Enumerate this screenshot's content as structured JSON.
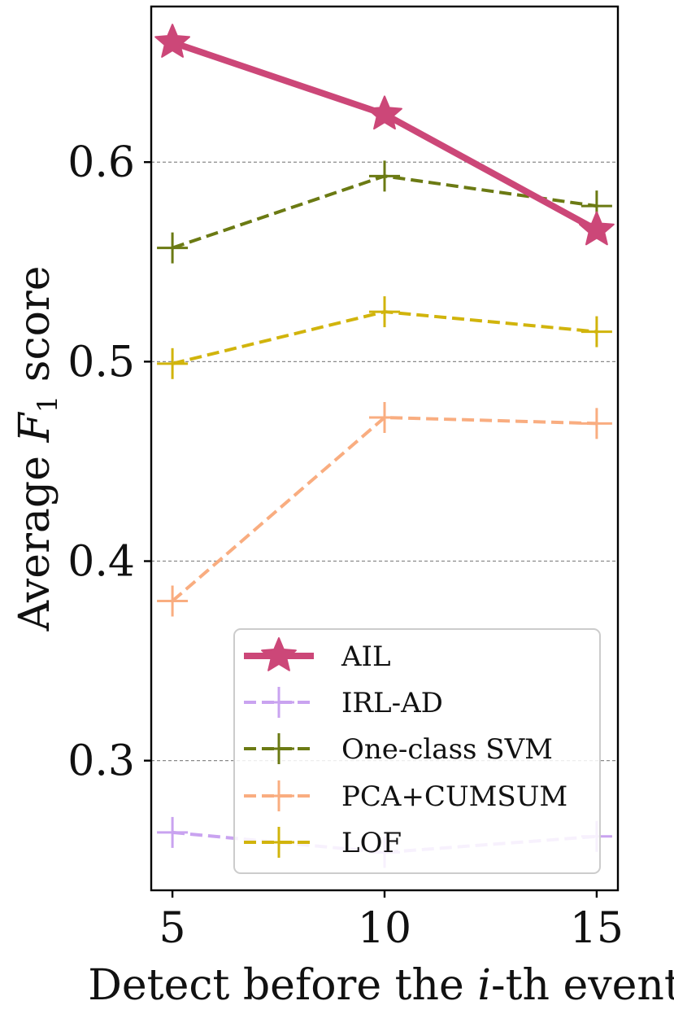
{
  "chart_data": {
    "type": "line",
    "x": [
      5,
      10,
      15
    ],
    "xlim": [
      4.5,
      15.5
    ],
    "ylim": [
      0.235,
      0.678
    ],
    "xticks": [
      5,
      10,
      15
    ],
    "xtick_labels": [
      "5",
      "10",
      "15"
    ],
    "yticks": [
      0.3,
      0.4,
      0.5,
      0.6
    ],
    "ytick_labels": [
      "0.3",
      "0.4",
      "0.5",
      "0.6"
    ],
    "xlabel": {
      "prefix": "Detect before the ",
      "var": "i",
      "suffix": "-th event"
    },
    "ylabel": {
      "prefix": "Average ",
      "var": "F",
      "sub": "1",
      "suffix": " score"
    },
    "grid": "horizontal dashed",
    "legend_position": "lower-right",
    "series": [
      {
        "name": "AIL",
        "values": [
          0.66,
          0.624,
          0.566
        ],
        "color": "#cc4778",
        "style": "solid",
        "marker": "star"
      },
      {
        "name": "IRL-AD",
        "values": [
          0.264,
          0.254,
          0.262
        ],
        "color": "#c9a3f0",
        "style": "dashed",
        "marker": "plus"
      },
      {
        "name": "One-class SVM",
        "values": [
          0.557,
          0.593,
          0.578
        ],
        "color": "#6b7a13",
        "style": "dashed",
        "marker": "plus"
      },
      {
        "name": "PCA+CUMSUM",
        "values": [
          0.38,
          0.472,
          0.469
        ],
        "color": "#f9ad80",
        "style": "dashed",
        "marker": "plus"
      },
      {
        "name": "LOF",
        "values": [
          0.499,
          0.525,
          0.515
        ],
        "color": "#d1b40c",
        "style": "dashed",
        "marker": "plus"
      }
    ]
  }
}
